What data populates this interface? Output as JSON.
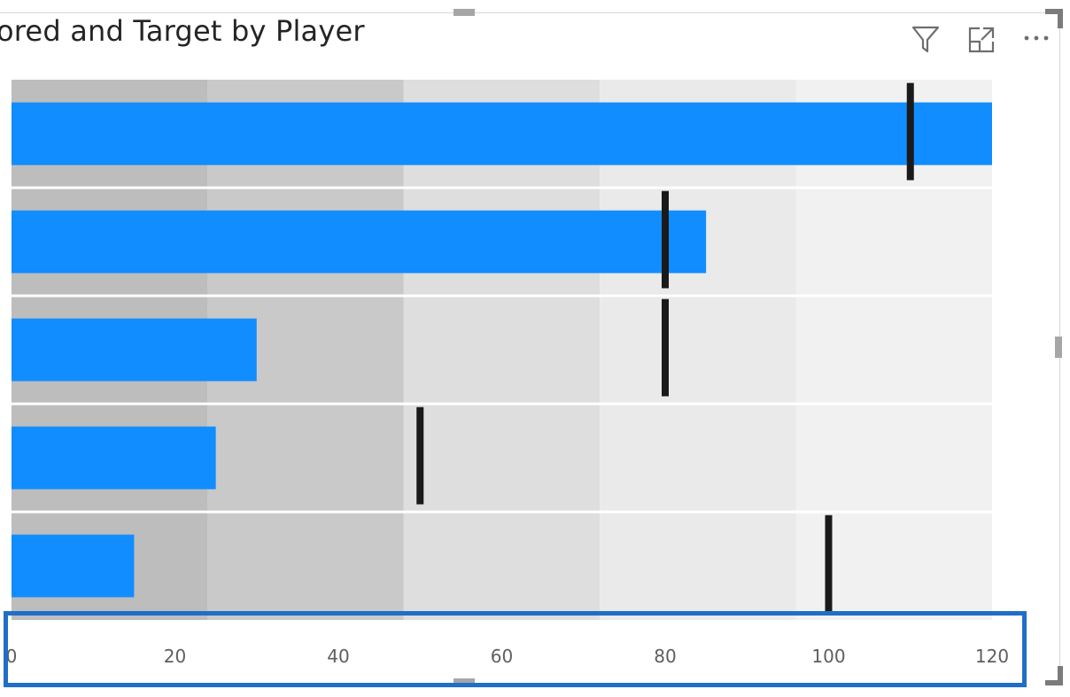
{
  "visual": {
    "title": "ored and Target by Player",
    "icons": [
      "filter-icon",
      "focus-mode-icon",
      "more-options-icon"
    ]
  },
  "colors": {
    "bar": "#118dff",
    "target": "#1a1a1a",
    "band_1": "#bdbdbd",
    "band_2": "#c9c9c9",
    "band_3": "#dedede",
    "band_4": "#eaeaea",
    "band_5": "#f1f1f1",
    "highlight": "#1f6ec8"
  },
  "chart_data": {
    "type": "bar",
    "orientation": "horizontal",
    "title": "ored and Target by Player",
    "xlim": [
      0,
      120
    ],
    "x_ticks": [
      0,
      20,
      40,
      60,
      80,
      100,
      120
    ],
    "x_tick_labels": [
      "0",
      "20",
      "40",
      "60",
      "80",
      "100",
      "120"
    ],
    "bands": [
      24,
      48,
      72,
      96,
      120
    ],
    "series": [
      {
        "values": [
          120,
          85,
          30,
          25,
          15
        ]
      },
      {
        "values": [
          110,
          80,
          80,
          50,
          100
        ]
      }
    ],
    "grid": false
  }
}
